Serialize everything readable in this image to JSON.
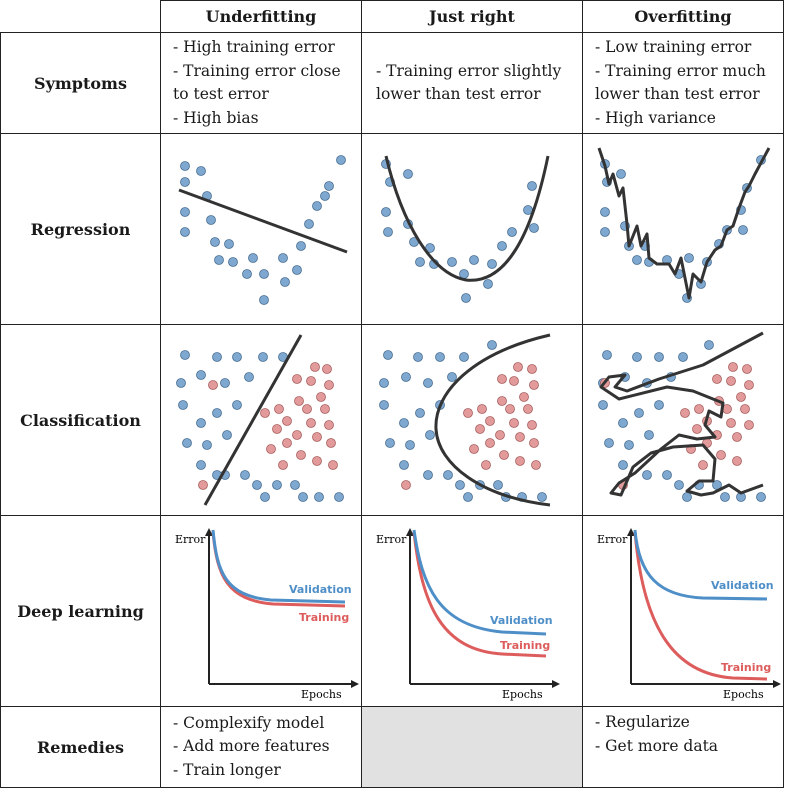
{
  "columns": [
    "Underfitting",
    "Just right",
    "Overfitting"
  ],
  "rows": {
    "symptoms": "Symptoms",
    "regression": "Regression",
    "classification": "Classification",
    "deep_learning": "Deep learning",
    "remedies": "Remedies"
  },
  "symptoms": {
    "underfitting": [
      "- High training error",
      "- Training error close to test error",
      "- High bias"
    ],
    "just_right": [
      "- Training error slightly lower than test error"
    ],
    "overfitting": [
      "- Low training error",
      "- Training error much lower than test error",
      "- High variance"
    ]
  },
  "remedies": {
    "underfitting": [
      "- Complexify model",
      "- Add more features",
      "- Train longer"
    ],
    "overfitting": [
      "- Regularize",
      "- Get more data"
    ]
  },
  "deep_learning_labels": {
    "y_axis": "Error",
    "x_axis": "Epochs",
    "validation": "Validation",
    "training": "Training"
  },
  "colors": {
    "blue_points": "#7ea8d0",
    "red_points": "#e39a9a",
    "validation_curve": "#4f8fc8",
    "training_curve": "#dd5c5c",
    "fit_line": "#333333"
  }
}
